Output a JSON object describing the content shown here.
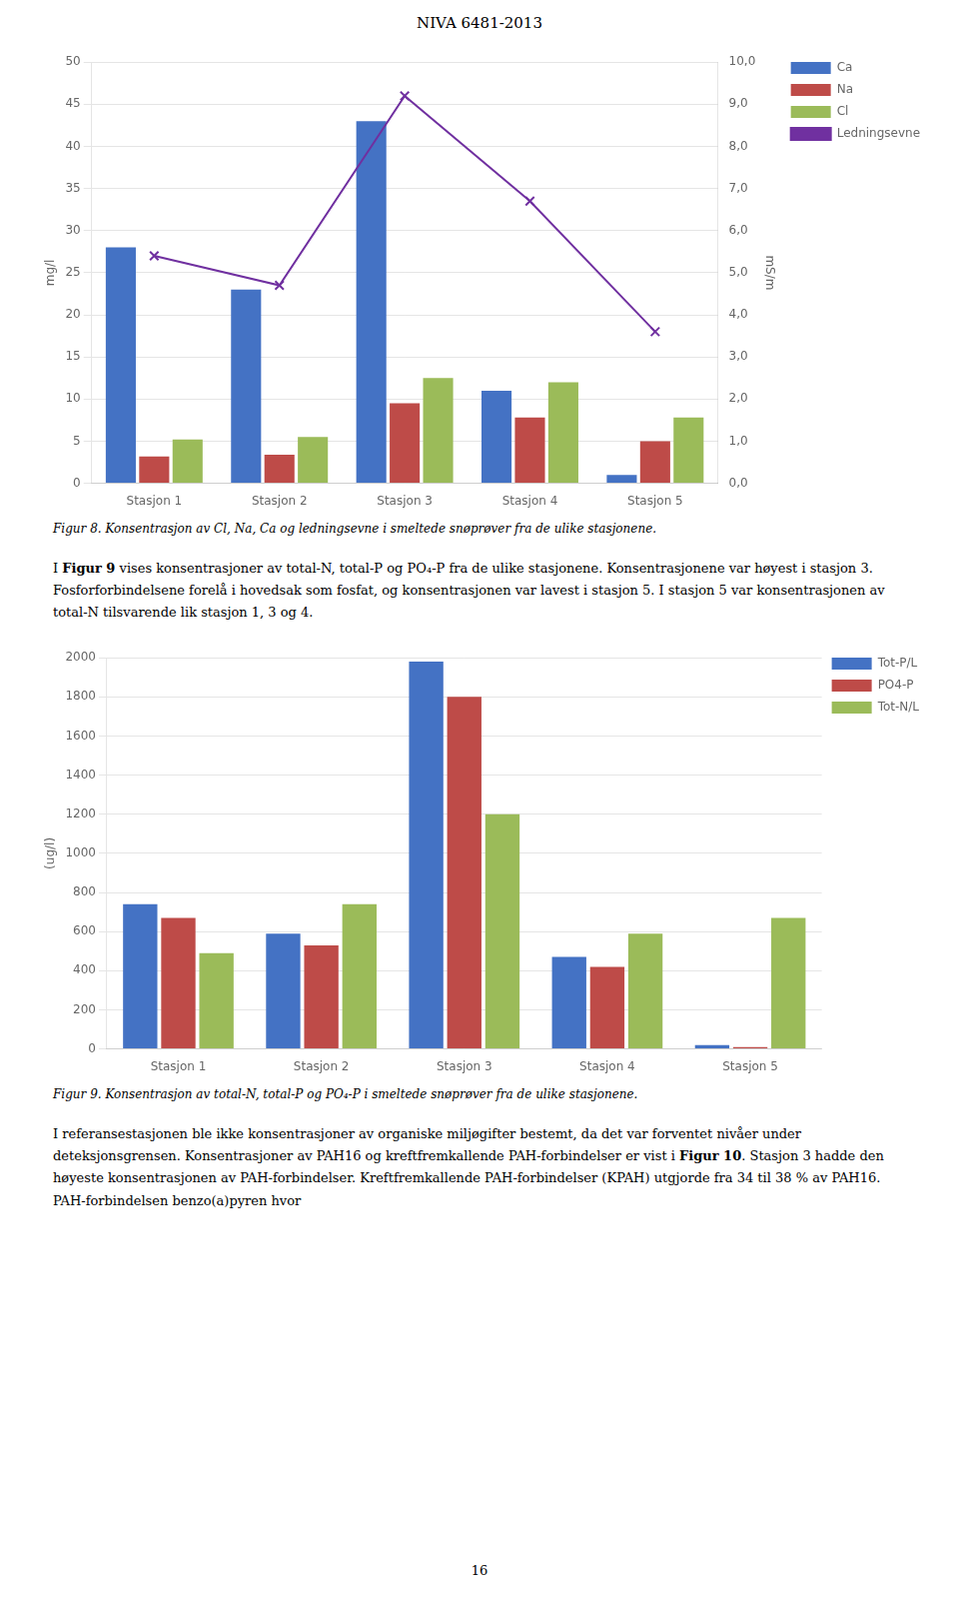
{
  "page_title": "NIVA 6481-2013",
  "chart_data": [
    {
      "type": "bar",
      "caption": "Figur 8. Konsentrasjon av Cl, Na, Ca og ledningsevne i smeltede snøprøver fra de ulike stasjonene.",
      "categories": [
        "Stasjon 1",
        "Stasjon 2",
        "Stasjon 3",
        "Stasjon 4",
        "Stasjon 5"
      ],
      "series": [
        {
          "name": "Ca",
          "color": "#4472C4",
          "values": [
            28,
            23,
            43,
            11,
            1
          ]
        },
        {
          "name": "Na",
          "color": "#BE4B48",
          "values": [
            3.2,
            3.4,
            9.5,
            7.8,
            5.0
          ]
        },
        {
          "name": "Cl",
          "color": "#9BBB59",
          "values": [
            5.2,
            5.5,
            12.5,
            12.0,
            7.8
          ]
        },
        {
          "name": "Ledningsevne",
          "type": "line",
          "axis": "y2",
          "color": "#7030A0",
          "marker": "x",
          "values": [
            5.4,
            4.7,
            9.2,
            6.7,
            3.6
          ]
        }
      ],
      "ylabel": "mg/l",
      "y2label": "mS/m",
      "ylim": [
        0,
        50
      ],
      "yticks": [
        0,
        5,
        10,
        15,
        20,
        25,
        30,
        35,
        40,
        45,
        50
      ],
      "y2lim": [
        0.0,
        10.0
      ],
      "y2ticks": [
        {
          "value": 0.0,
          "label": "0,0"
        },
        {
          "value": 1.0,
          "label": "1,0"
        },
        {
          "value": 2.0,
          "label": "2,0"
        },
        {
          "value": 3.0,
          "label": "3,0"
        },
        {
          "value": 4.0,
          "label": "4,0"
        },
        {
          "value": 5.0,
          "label": "5,0"
        },
        {
          "value": 6.0,
          "label": "6,0"
        },
        {
          "value": 7.0,
          "label": "7,0"
        },
        {
          "value": 8.0,
          "label": "8,0"
        },
        {
          "value": 9.0,
          "label": "9,0"
        },
        {
          "value": 10.0,
          "label": "10,0"
        }
      ],
      "grid": true,
      "legend": "right"
    },
    {
      "type": "bar",
      "caption": "Figur 9. Konsentrasjon av total-N, total-P og PO₄-P i smeltede snøprøver fra de ulike stasjonene.",
      "categories": [
        "Stasjon 1",
        "Stasjon 2",
        "Stasjon 3",
        "Stasjon 4",
        "Stasjon 5"
      ],
      "series": [
        {
          "name": "Tot-P/L",
          "color": "#4472C4",
          "values": [
            740,
            590,
            1980,
            470,
            20
          ]
        },
        {
          "name": "PO4-P",
          "color": "#BE4B48",
          "values": [
            670,
            530,
            1800,
            420,
            10
          ]
        },
        {
          "name": "Tot-N/L",
          "color": "#9BBB59",
          "values": [
            490,
            740,
            1200,
            590,
            670
          ]
        }
      ],
      "ylabel": "(ug/l)",
      "ylim": [
        0,
        2000
      ],
      "yticks": [
        0,
        200,
        400,
        600,
        800,
        1000,
        1200,
        1400,
        1600,
        1800,
        2000
      ],
      "grid": true,
      "legend": "right"
    }
  ],
  "paragraph": [
    {
      "text": "I "
    },
    {
      "text": "Figur 9",
      "bold": true
    },
    {
      "text": " vises konsentrasjoner av total-N, total-P og PO₄-P fra de ulike stasjonene. Konsentrasjonene var høyest i stasjon 3. Fosforforbindelsene forelå i hovedsak som fosfat, og konsentrasjonen var lavest i stasjon 5. I stasjon 5 var konsentrasjonen av total-N tilsvarende lik stasjon 1, 3 og 4."
    }
  ],
  "bottom_text": [
    {
      "text": "I referansestasjonen ble ikke konsentrasjoner av organiske miljøgifter bestemt, da det var forventet nivåer under deteksjonsgrensen. Konsentrasjoner av PAH16 og kreftfremkallende PAH-forbindelser er vist i "
    },
    {
      "text": "Figur 10",
      "bold": true
    },
    {
      "text": ". Stasjon 3 hadde den høyeste konsentrasjonen av PAH-forbindelser. Kreftfremkallende PAH-forbindelser (KPAH) utgjorde fra 34 til 38 % av PAH16. PAH-forbindelsen benzo(a)pyren hvor"
    }
  ],
  "page_number": "16"
}
